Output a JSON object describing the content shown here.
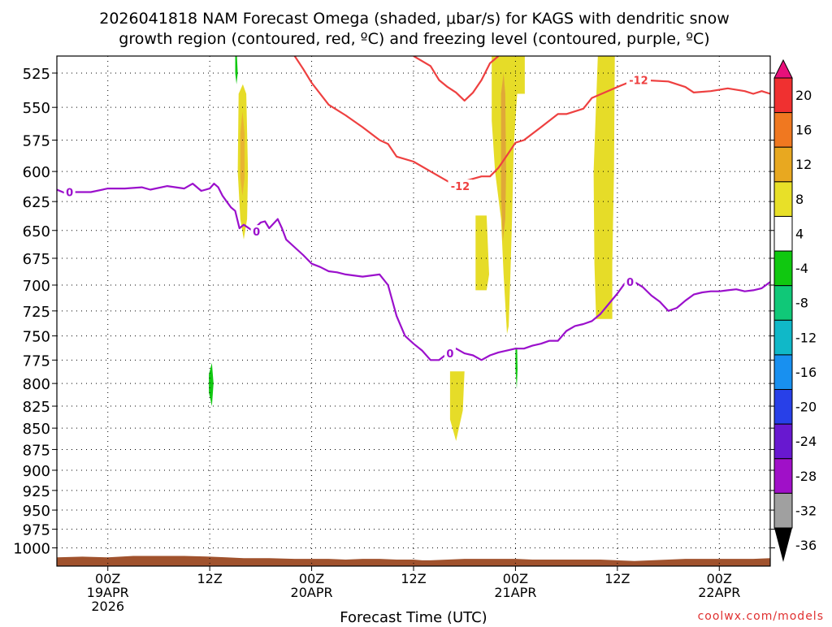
{
  "title_line1": "2026041818 NAM Forecast Omega (shaded, μbar/s) for KAGS with dendritic snow",
  "title_line2": "growth region (contoured, red, ºC) and freezing level (contoured, purple, ºC)",
  "credit": "coolwx.com/models",
  "chart_data": {
    "type": "heatmap",
    "xlabel": "Forecast Time (UTC)",
    "ylabel": "",
    "x_units": "forecast hour from 2026041818",
    "xlim": [
      0,
      84
    ],
    "y_scale": "log-pressure",
    "ylim": [
      1025,
      513
    ],
    "grid": true,
    "y_ticks": [
      525,
      550,
      575,
      600,
      625,
      650,
      675,
      700,
      725,
      750,
      775,
      800,
      825,
      850,
      875,
      900,
      925,
      950,
      975,
      1000
    ],
    "x_ticks": [
      {
        "hour": 6,
        "label": "00Z",
        "sub": [
          "19APR",
          "2026"
        ]
      },
      {
        "hour": 18,
        "label": "12Z",
        "sub": []
      },
      {
        "hour": 30,
        "label": "00Z",
        "sub": [
          "20APR"
        ]
      },
      {
        "hour": 42,
        "label": "12Z",
        "sub": []
      },
      {
        "hour": 54,
        "label": "00Z",
        "sub": [
          "21APR"
        ]
      },
      {
        "hour": 66,
        "label": "12Z",
        "sub": []
      },
      {
        "hour": 78,
        "label": "00Z",
        "sub": [
          "22APR"
        ]
      }
    ],
    "colorbar": {
      "labels": [
        "20",
        "16",
        "12",
        "8",
        "4",
        "-4",
        "-8",
        "-12",
        "-16",
        "-20",
        "-24",
        "-28",
        "-32",
        "-36"
      ],
      "colors": [
        "#f03030",
        "#f07820",
        "#e8a820",
        "#e8e028",
        "#ffffff",
        "#10c810",
        "#10c878",
        "#10b8c8",
        "#1890f0",
        "#2840e8",
        "#6818d0",
        "#a010c8",
        "#a0a0a0"
      ],
      "top_color": "#e8107a",
      "bottom_color": "#000000"
    },
    "omega_regions": [
      {
        "value": 4,
        "color": "#e6dc28",
        "points": [
          [
            21.4,
            540
          ],
          [
            21.9,
            533
          ],
          [
            22.3,
            540
          ],
          [
            22.5,
            600
          ],
          [
            22.4,
            640
          ],
          [
            22.0,
            658
          ],
          [
            21.6,
            640
          ],
          [
            21.3,
            600
          ]
        ]
      },
      {
        "value": 8,
        "color": "#e8b432",
        "points": [
          [
            21.6,
            570
          ],
          [
            21.85,
            553
          ],
          [
            22.1,
            570
          ],
          [
            22.1,
            605
          ],
          [
            21.85,
            620
          ],
          [
            21.6,
            605
          ]
        ]
      },
      {
        "value": 4,
        "color": "#e6dc28",
        "points": [
          [
            49.3,
            637
          ],
          [
            50.6,
            637
          ],
          [
            50.9,
            690
          ],
          [
            50.6,
            705
          ],
          [
            49.3,
            705
          ]
        ]
      },
      {
        "value": 4,
        "color": "#e6dc28",
        "points": [
          [
            51.2,
            513
          ],
          [
            55.1,
            513
          ],
          [
            55.1,
            540
          ],
          [
            54.2,
            540
          ],
          [
            53.8,
            580
          ],
          [
            53.6,
            640
          ],
          [
            53.4,
            690
          ],
          [
            53.2,
            740
          ],
          [
            53.0,
            748
          ],
          [
            52.6,
            690
          ],
          [
            52.3,
            640
          ],
          [
            51.6,
            600
          ],
          [
            51.2,
            560
          ]
        ]
      },
      {
        "value": 8,
        "color": "#e0a838",
        "points": [
          [
            52.3,
            540
          ],
          [
            52.6,
            525
          ],
          [
            52.8,
            540
          ],
          [
            52.9,
            600
          ],
          [
            52.8,
            640
          ],
          [
            52.5,
            660
          ],
          [
            52.3,
            620
          ]
        ]
      },
      {
        "value": 4,
        "color": "#e6dc28",
        "points": [
          [
            63.7,
            513
          ],
          [
            65.7,
            513
          ],
          [
            65.6,
            600
          ],
          [
            65.4,
            680
          ],
          [
            65.4,
            733
          ],
          [
            63.5,
            733
          ],
          [
            63.3,
            680
          ],
          [
            63.2,
            600
          ]
        ]
      },
      {
        "value": 4,
        "color": "#e6dc28",
        "points": [
          [
            46.3,
            787
          ],
          [
            48.0,
            787
          ],
          [
            47.8,
            830
          ],
          [
            47.0,
            865
          ],
          [
            46.3,
            840
          ]
        ]
      },
      {
        "value": -4,
        "color": "#10c810",
        "points": [
          [
            21.0,
            513
          ],
          [
            21.2,
            513
          ],
          [
            21.3,
            525
          ],
          [
            21.15,
            533
          ],
          [
            21.0,
            525
          ]
        ]
      },
      {
        "value": -4,
        "color": "#10c810",
        "points": [
          [
            17.9,
            790
          ],
          [
            18.25,
            778
          ],
          [
            18.45,
            800
          ],
          [
            18.25,
            825
          ],
          [
            17.9,
            810
          ]
        ]
      },
      {
        "value": -4,
        "color": "#10c810",
        "points": [
          [
            54.0,
            762
          ],
          [
            54.2,
            762
          ],
          [
            54.25,
            785
          ],
          [
            54.15,
            806
          ],
          [
            54.0,
            785
          ]
        ]
      }
    ],
    "red_contour": {
      "label": "-12",
      "segments": [
        [
          [
            28,
            513
          ],
          [
            29,
            522
          ],
          [
            30,
            532
          ],
          [
            32,
            548
          ],
          [
            34,
            556
          ],
          [
            36,
            565
          ],
          [
            38,
            575
          ],
          [
            39,
            578
          ],
          [
            40,
            588
          ],
          [
            42,
            592
          ],
          [
            44,
            600
          ],
          [
            46,
            608
          ],
          [
            47,
            612
          ],
          [
            48,
            608
          ],
          [
            50,
            604
          ],
          [
            51,
            604
          ],
          [
            52,
            597
          ],
          [
            53,
            587
          ],
          [
            54,
            577
          ],
          [
            55,
            575
          ],
          [
            57,
            565
          ],
          [
            59,
            555
          ],
          [
            60,
            555
          ],
          [
            62,
            551
          ],
          [
            63,
            543
          ],
          [
            66,
            535
          ],
          [
            68,
            530
          ],
          [
            69,
            530
          ],
          [
            72,
            531
          ],
          [
            73,
            533
          ],
          [
            74,
            535
          ],
          [
            75,
            539
          ],
          [
            77,
            538
          ],
          [
            79,
            536
          ],
          [
            81,
            538
          ],
          [
            82,
            540
          ],
          [
            83,
            538
          ],
          [
            84,
            540
          ]
        ],
        [
          [
            42,
            513
          ],
          [
            44,
            520
          ],
          [
            45,
            530
          ],
          [
            46,
            535
          ],
          [
            47,
            539
          ],
          [
            48,
            545
          ],
          [
            49,
            539
          ],
          [
            50,
            530
          ],
          [
            51,
            518
          ],
          [
            52,
            513
          ]
        ]
      ],
      "label_points": [
        [
          47.5,
          612
        ],
        [
          68.5,
          530
        ]
      ]
    },
    "purple_contour": {
      "label": "0",
      "points": [
        [
          0,
          615
        ],
        [
          1,
          618
        ],
        [
          2,
          617
        ],
        [
          4,
          617
        ],
        [
          6,
          614
        ],
        [
          8,
          614
        ],
        [
          10,
          613
        ],
        [
          11,
          615
        ],
        [
          13,
          612
        ],
        [
          15,
          614
        ],
        [
          16,
          610
        ],
        [
          17,
          616
        ],
        [
          18,
          614
        ],
        [
          18.5,
          610
        ],
        [
          19,
          613
        ],
        [
          19.5,
          620
        ],
        [
          20,
          625
        ],
        [
          20.5,
          630
        ],
        [
          21,
          633
        ],
        [
          21.5,
          648
        ],
        [
          22,
          645
        ],
        [
          23,
          650
        ],
        [
          24,
          643
        ],
        [
          24.5,
          642
        ],
        [
          25,
          648
        ],
        [
          26,
          640
        ],
        [
          26.5,
          648
        ],
        [
          27,
          658
        ],
        [
          28,
          665
        ],
        [
          29,
          672
        ],
        [
          30,
          680
        ],
        [
          31,
          683
        ],
        [
          32,
          687
        ],
        [
          33,
          688
        ],
        [
          34,
          690
        ],
        [
          36,
          692
        ],
        [
          38,
          690
        ],
        [
          39,
          700
        ],
        [
          40,
          730
        ],
        [
          41,
          750
        ],
        [
          42,
          758
        ],
        [
          43,
          765
        ],
        [
          44,
          775
        ],
        [
          45,
          775
        ],
        [
          46,
          768
        ],
        [
          47,
          763
        ],
        [
          48,
          768
        ],
        [
          49,
          770
        ],
        [
          50,
          775
        ],
        [
          51,
          770
        ],
        [
          52,
          767
        ],
        [
          53,
          765
        ],
        [
          54,
          763
        ],
        [
          55,
          763
        ],
        [
          56,
          760
        ],
        [
          57,
          758
        ],
        [
          58,
          755
        ],
        [
          59,
          755
        ],
        [
          60,
          745
        ],
        [
          61,
          740
        ],
        [
          62,
          738
        ],
        [
          63,
          735
        ],
        [
          64,
          728
        ],
        [
          65,
          718
        ],
        [
          66,
          708
        ],
        [
          67,
          697
        ],
        [
          68,
          697
        ],
        [
          69,
          702
        ],
        [
          70,
          710
        ],
        [
          71,
          716
        ],
        [
          72,
          725
        ],
        [
          73,
          722
        ],
        [
          74,
          715
        ],
        [
          75,
          709
        ],
        [
          76,
          707
        ],
        [
          77,
          706
        ],
        [
          78,
          706
        ],
        [
          79,
          705
        ],
        [
          80,
          704
        ],
        [
          81,
          706
        ],
        [
          82,
          705
        ],
        [
          83,
          703
        ],
        [
          84,
          697
        ]
      ],
      "label_points": [
        [
          1.5,
          617
        ],
        [
          23.5,
          651
        ],
        [
          46.3,
          768
        ],
        [
          67.5,
          697
        ]
      ]
    },
    "terrain": {
      "color": "#a0522d",
      "top_points": [
        [
          0,
          1013
        ],
        [
          3,
          1012
        ],
        [
          6,
          1013
        ],
        [
          9,
          1011
        ],
        [
          12,
          1011
        ],
        [
          15,
          1011
        ],
        [
          18,
          1012
        ],
        [
          20,
          1013
        ],
        [
          22,
          1014
        ],
        [
          25,
          1014
        ],
        [
          28,
          1015
        ],
        [
          30,
          1015
        ],
        [
          32,
          1015
        ],
        [
          34,
          1016
        ],
        [
          36,
          1015
        ],
        [
          38,
          1015
        ],
        [
          40,
          1016
        ],
        [
          42,
          1016
        ],
        [
          43,
          1017
        ],
        [
          44,
          1017
        ],
        [
          46,
          1016
        ],
        [
          48,
          1015
        ],
        [
          50,
          1015
        ],
        [
          52,
          1015
        ],
        [
          54,
          1015
        ],
        [
          56,
          1016
        ],
        [
          58,
          1016
        ],
        [
          60,
          1016
        ],
        [
          62,
          1016
        ],
        [
          64,
          1016
        ],
        [
          66,
          1017
        ],
        [
          68,
          1018
        ],
        [
          70,
          1017
        ],
        [
          72,
          1016
        ],
        [
          74,
          1015
        ],
        [
          76,
          1015
        ],
        [
          78,
          1015
        ],
        [
          80,
          1015
        ],
        [
          82,
          1015
        ],
        [
          84,
          1014
        ]
      ]
    }
  }
}
